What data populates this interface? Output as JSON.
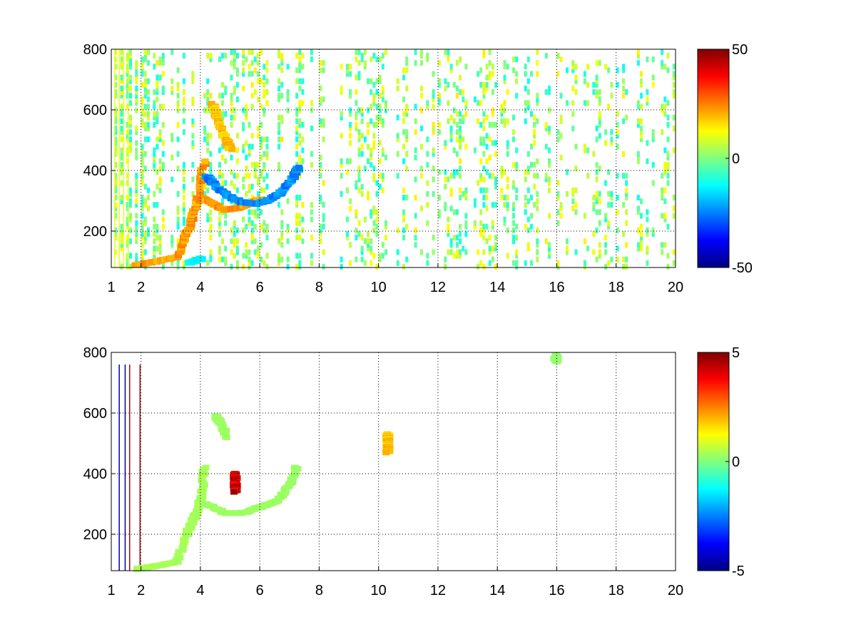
{
  "figure": {
    "background": "#ffffff"
  },
  "chart_data": [
    {
      "type": "heatmap",
      "title": "",
      "xlabel": "",
      "ylabel": "",
      "xlim": [
        1,
        20
      ],
      "ylim": [
        80,
        800
      ],
      "x_ticks": [
        1,
        2,
        4,
        6,
        8,
        10,
        12,
        14,
        16,
        18,
        20
      ],
      "y_ticks": [
        200,
        400,
        600,
        800
      ],
      "grid": true,
      "colormap": "jet",
      "colorbar": {
        "range": [
          -50,
          50
        ],
        "ticks": [
          50,
          0,
          -50
        ]
      },
      "features": [
        {
          "name": "rising ridge",
          "points": [
            [
              1.8,
              88
            ],
            [
              2.5,
              100
            ],
            [
              3.2,
              115
            ],
            [
              3.5,
              190
            ],
            [
              3.7,
              240
            ],
            [
              3.9,
              300
            ],
            [
              4.1,
              430
            ]
          ],
          "value": 24
        },
        {
          "name": "upper blob",
          "points": [
            [
              4.4,
              620
            ],
            [
              4.6,
              560
            ],
            [
              4.8,
              510
            ],
            [
              5.0,
              470
            ]
          ],
          "value": 20
        },
        {
          "name": "orange arc",
          "points": [
            [
              4.0,
              310
            ],
            [
              4.4,
              290
            ],
            [
              4.8,
              270
            ],
            [
              5.2,
              275
            ],
            [
              5.6,
              290
            ],
            [
              6.0,
              305
            ]
          ],
          "value": 24
        },
        {
          "name": "blue arc",
          "points": [
            [
              4.2,
              380
            ],
            [
              4.6,
              340
            ],
            [
              5.0,
              310
            ],
            [
              5.4,
              295
            ],
            [
              5.8,
              290
            ],
            [
              6.2,
              300
            ],
            [
              6.6,
              320
            ],
            [
              7.0,
              360
            ],
            [
              7.3,
              410
            ]
          ],
          "value": -26
        },
        {
          "name": "low cyan patch",
          "points": [
            [
              3.6,
              95
            ],
            [
              4.0,
              110
            ]
          ],
          "value": -14
        }
      ]
    },
    {
      "type": "heatmap",
      "title": "",
      "xlabel": "",
      "ylabel": "",
      "xlim": [
        1,
        20
      ],
      "ylim": [
        80,
        800
      ],
      "x_ticks": [
        1,
        2,
        4,
        6,
        8,
        10,
        12,
        14,
        16,
        18,
        20
      ],
      "y_ticks": [
        200,
        400,
        600,
        800
      ],
      "grid": true,
      "colormap": "jet",
      "colorbar": {
        "range": [
          -5,
          5
        ],
        "ticks": [
          5,
          0,
          -5
        ]
      },
      "features": [
        {
          "name": "rising ridge",
          "points": [
            [
              1.8,
              85
            ],
            [
              2.5,
              95
            ],
            [
              3.2,
              110
            ],
            [
              3.5,
              200
            ],
            [
              3.8,
              260
            ],
            [
              4.0,
              320
            ],
            [
              4.1,
              420
            ]
          ],
          "value": 0.4
        },
        {
          "name": "upper blob",
          "points": [
            [
              4.5,
              590
            ],
            [
              4.7,
              560
            ],
            [
              4.9,
              520
            ]
          ],
          "value": 0.3
        },
        {
          "name": "arc",
          "points": [
            [
              4.2,
              300
            ],
            [
              4.8,
              270
            ],
            [
              5.4,
              270
            ],
            [
              6.0,
              290
            ],
            [
              6.6,
              310
            ],
            [
              7.0,
              370
            ],
            [
              7.2,
              420
            ]
          ],
          "value": 0.3
        },
        {
          "name": "isolated spike",
          "points": [
            [
              5.15,
              400
            ],
            [
              5.15,
              380
            ],
            [
              5.15,
              360
            ],
            [
              5.15,
              340
            ]
          ],
          "value": 4.5
        },
        {
          "name": "spike 10.3",
          "points": [
            [
              10.3,
              530
            ],
            [
              10.3,
              510
            ],
            [
              10.3,
              490
            ],
            [
              10.3,
              470
            ]
          ],
          "value": 2.0
        },
        {
          "name": "spike 16",
          "points": [
            [
              15.95,
              790
            ],
            [
              15.95,
              770
            ]
          ],
          "value": 0.2
        }
      ]
    }
  ]
}
